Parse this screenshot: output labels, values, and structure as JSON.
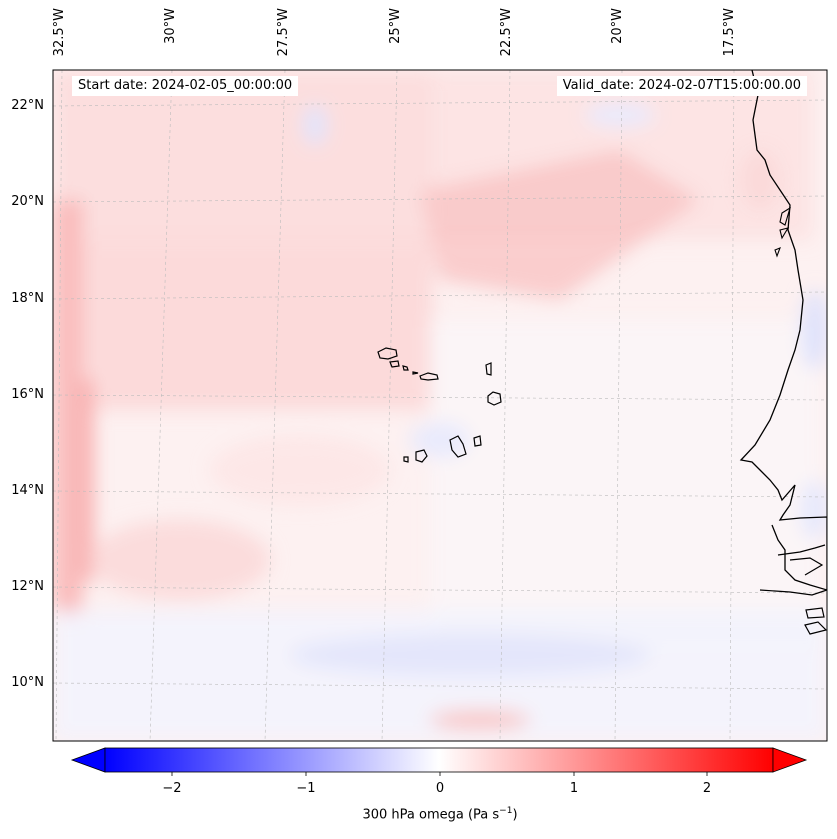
{
  "header": {
    "start_date": "Start date: 2024-02-05_00:00:00",
    "valid_date": "Valid_date: 2024-02-07T15:00:00.00"
  },
  "map": {
    "lon_labels": [
      "32.5°W",
      "30°W",
      "27.5°W",
      "25°W",
      "22.5°W",
      "20°W",
      "17.5°W"
    ],
    "lat_labels": [
      "22°N",
      "20°N",
      "18°N",
      "16°N",
      "14°N",
      "12°N",
      "10°N"
    ],
    "field": "300 hPa omega",
    "islands": "Cape Verde",
    "coast": "West Africa (Senegal/Gambia/Mauritania)"
  },
  "colorbar": {
    "ticks": [
      "−2",
      "−1",
      "0",
      "1",
      "2"
    ],
    "tick_values": [
      -2,
      -1,
      0,
      1,
      2
    ],
    "range": [
      -2.5,
      2.5
    ],
    "label_main": "300 hPa omega (Pa s",
    "label_sup": "−1",
    "label_end": ")",
    "colors": {
      "low": "#0000ff",
      "mid": "#ffffff",
      "high": "#ff0000"
    }
  }
}
